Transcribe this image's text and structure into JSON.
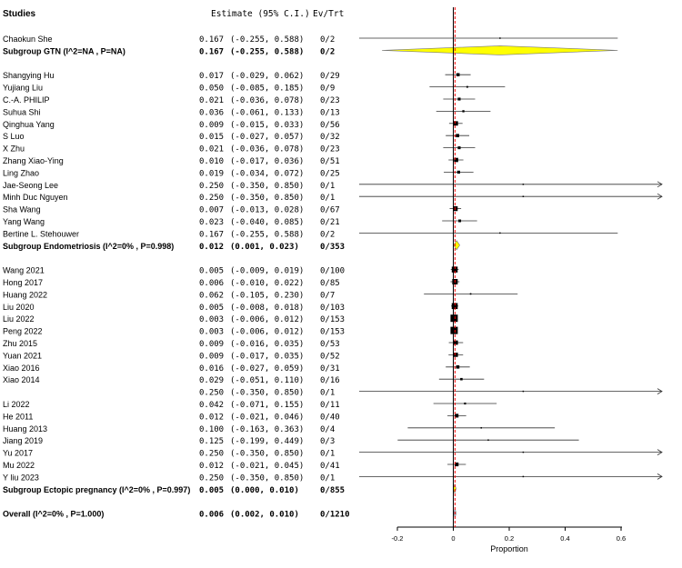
{
  "headers": {
    "studies": "Studies",
    "estimate": "Estimate (95% C.I.)",
    "events": "Ev/Trt"
  },
  "axis": {
    "xlabel": "Proportion",
    "ticks": [
      "-0.2",
      "0",
      "0.2",
      "0.4",
      "0.6"
    ]
  },
  "chart_data": {
    "type": "forest",
    "xlim": [
      -0.2,
      0.6
    ],
    "xlabel": "Proportion",
    "reference_line": 0.006,
    "colors": {
      "subgroup_diamond": "#ffff00",
      "overall_diamond": "#a8c0e0",
      "reference": "#ff0000"
    },
    "rows": [
      {
        "kind": "study",
        "name": "Chaokun She",
        "est": 0.167,
        "lo": -0.255,
        "hi": 0.588,
        "est_text": "0.167",
        "ci_text": "(-0.255, 0.588)",
        "ev": "0/2"
      },
      {
        "kind": "subgroup",
        "name": "Subgroup GTN (I^2=NA , P=NA)",
        "est": 0.167,
        "lo": -0.255,
        "hi": 0.588,
        "est_text": "0.167",
        "ci_text": "(-0.255, 0.588)",
        "ev": "0/2"
      },
      {
        "kind": "blank"
      },
      {
        "kind": "study",
        "name": "Shangying Hu",
        "est": 0.017,
        "lo": -0.029,
        "hi": 0.062,
        "est_text": "0.017",
        "ci_text": "(-0.029, 0.062)",
        "ev": "0/29"
      },
      {
        "kind": "study",
        "name": "Yujiang Liu",
        "est": 0.05,
        "lo": -0.085,
        "hi": 0.185,
        "est_text": "0.050",
        "ci_text": "(-0.085, 0.185)",
        "ev": "0/9"
      },
      {
        "kind": "study",
        "name": "C.-A. PHILIP",
        "est": 0.021,
        "lo": -0.036,
        "hi": 0.078,
        "est_text": "0.021",
        "ci_text": "(-0.036, 0.078)",
        "ev": "0/23"
      },
      {
        "kind": "study",
        "name": "Suhua Shi",
        "est": 0.036,
        "lo": -0.061,
        "hi": 0.133,
        "est_text": "0.036",
        "ci_text": "(-0.061, 0.133)",
        "ev": "0/13"
      },
      {
        "kind": "study",
        "name": "Qinghua Yang",
        "est": 0.009,
        "lo": -0.015,
        "hi": 0.033,
        "est_text": "0.009",
        "ci_text": "(-0.015, 0.033)",
        "ev": "0/56"
      },
      {
        "kind": "study",
        "name": "S Luo",
        "est": 0.015,
        "lo": -0.027,
        "hi": 0.057,
        "est_text": "0.015",
        "ci_text": "(-0.027, 0.057)",
        "ev": "0/32"
      },
      {
        "kind": "study",
        "name": "X Zhu",
        "est": 0.021,
        "lo": -0.036,
        "hi": 0.078,
        "est_text": "0.021",
        "ci_text": "(-0.036, 0.078)",
        "ev": "0/23"
      },
      {
        "kind": "study",
        "name": "Zhang Xiao-Ying",
        "est": 0.01,
        "lo": -0.017,
        "hi": 0.036,
        "est_text": "0.010",
        "ci_text": "(-0.017, 0.036)",
        "ev": "0/51"
      },
      {
        "kind": "study",
        "name": "Ling Zhao",
        "est": 0.019,
        "lo": -0.034,
        "hi": 0.072,
        "est_text": "0.019",
        "ci_text": "(-0.034, 0.072)",
        "ev": "0/25"
      },
      {
        "kind": "study",
        "name": "Jae-Seong Lee",
        "est": 0.25,
        "lo": -0.35,
        "hi": 0.85,
        "est_text": "0.250",
        "ci_text": "(-0.350, 0.850)",
        "ev": "0/1"
      },
      {
        "kind": "study",
        "name": "Minh Duc Nguyen",
        "est": 0.25,
        "lo": -0.35,
        "hi": 0.85,
        "est_text": "0.250",
        "ci_text": "(-0.350, 0.850)",
        "ev": "0/1"
      },
      {
        "kind": "study",
        "name": "Sha Wang",
        "est": 0.007,
        "lo": -0.013,
        "hi": 0.028,
        "est_text": "0.007",
        "ci_text": "(-0.013, 0.028)",
        "ev": "0/67"
      },
      {
        "kind": "study",
        "name": "Yang Wang",
        "est": 0.023,
        "lo": -0.04,
        "hi": 0.085,
        "est_text": "0.023",
        "ci_text": "(-0.040, 0.085)",
        "ev": "0/21"
      },
      {
        "kind": "study",
        "name": "Bertine L. Stehouwer",
        "est": 0.167,
        "lo": -0.255,
        "hi": 0.588,
        "est_text": "0.167",
        "ci_text": "(-0.255, 0.588)",
        "ev": "0/2"
      },
      {
        "kind": "subgroup",
        "name": "Subgroup Endometriosis (I^2=0% , P=0.998)",
        "est": 0.012,
        "lo": 0.001,
        "hi": 0.023,
        "est_text": "0.012",
        "ci_text": "(0.001, 0.023)",
        "ev": "0/353"
      },
      {
        "kind": "blank"
      },
      {
        "kind": "study",
        "name": "Wang 2021",
        "est": 0.005,
        "lo": -0.009,
        "hi": 0.019,
        "est_text": "0.005",
        "ci_text": "(-0.009, 0.019)",
        "ev": "0/100"
      },
      {
        "kind": "study",
        "name": "Hong 2017",
        "est": 0.006,
        "lo": -0.01,
        "hi": 0.022,
        "est_text": "0.006",
        "ci_text": "(-0.010, 0.022)",
        "ev": "0/85"
      },
      {
        "kind": "study",
        "name": "Huang 2022",
        "est": 0.062,
        "lo": -0.105,
        "hi": 0.23,
        "est_text": "0.062",
        "ci_text": "(-0.105, 0.230)",
        "ev": "0/7"
      },
      {
        "kind": "study",
        "name": "Liu 2020",
        "est": 0.005,
        "lo": -0.008,
        "hi": 0.018,
        "est_text": "0.005",
        "ci_text": "(-0.008, 0.018)",
        "ev": "0/103"
      },
      {
        "kind": "study",
        "name": "Liu 2022",
        "est": 0.003,
        "lo": -0.006,
        "hi": 0.012,
        "est_text": "0.003",
        "ci_text": "(-0.006, 0.012)",
        "ev": "0/153"
      },
      {
        "kind": "study",
        "name": "Peng 2022",
        "est": 0.003,
        "lo": -0.006,
        "hi": 0.012,
        "est_text": "0.003",
        "ci_text": "(-0.006, 0.012)",
        "ev": "0/153"
      },
      {
        "kind": "study",
        "name": "Zhu 2015",
        "est": 0.009,
        "lo": -0.016,
        "hi": 0.035,
        "est_text": "0.009",
        "ci_text": "(-0.016, 0.035)",
        "ev": "0/53"
      },
      {
        "kind": "study",
        "name": " Yuan 2021",
        "est": 0.009,
        "lo": -0.017,
        "hi": 0.035,
        "est_text": "0.009",
        "ci_text": "(-0.017, 0.035)",
        "ev": "0/52"
      },
      {
        "kind": "study",
        "name": "Xiao 2016",
        "est": 0.016,
        "lo": -0.027,
        "hi": 0.059,
        "est_text": "0.016",
        "ci_text": "(-0.027, 0.059)",
        "ev": "0/31"
      },
      {
        "kind": "study",
        "name": " Xiao 2014",
        "est": 0.029,
        "lo": -0.051,
        "hi": 0.11,
        "est_text": "0.029",
        "ci_text": "(-0.051, 0.110)",
        "ev": "0/16"
      },
      {
        "kind": "study",
        "name": "",
        "est": 0.25,
        "lo": -0.35,
        "hi": 0.85,
        "est_text": "0.250",
        "ci_text": "(-0.350, 0.850)",
        "ev": "0/1"
      },
      {
        "kind": "study",
        "name": "Li 2022",
        "est": 0.042,
        "lo": -0.071,
        "hi": 0.155,
        "est_text": "0.042",
        "ci_text": "(-0.071, 0.155)",
        "ev": "0/11"
      },
      {
        "kind": "study",
        "name": "He 2011",
        "est": 0.012,
        "lo": -0.021,
        "hi": 0.046,
        "est_text": "0.012",
        "ci_text": "(-0.021, 0.046)",
        "ev": "0/40"
      },
      {
        "kind": "study",
        "name": " Huang 2013",
        "est": 0.1,
        "lo": -0.163,
        "hi": 0.363,
        "est_text": "0.100",
        "ci_text": "(-0.163, 0.363)",
        "ev": "0/4"
      },
      {
        "kind": "study",
        "name": "Jiang 2019",
        "est": 0.125,
        "lo": -0.199,
        "hi": 0.449,
        "est_text": "0.125",
        "ci_text": "(-0.199, 0.449)",
        "ev": "0/3"
      },
      {
        "kind": "study",
        "name": "Yu 2017",
        "est": 0.25,
        "lo": -0.35,
        "hi": 0.85,
        "est_text": "0.250",
        "ci_text": "(-0.350, 0.850)",
        "ev": "0/1"
      },
      {
        "kind": "study",
        "name": "Mu 2022",
        "est": 0.012,
        "lo": -0.021,
        "hi": 0.045,
        "est_text": "0.012",
        "ci_text": "(-0.021, 0.045)",
        "ev": "0/41"
      },
      {
        "kind": "study",
        "name": "Y liu 2023",
        "est": 0.25,
        "lo": -0.35,
        "hi": 0.85,
        "est_text": "0.250",
        "ci_text": "(-0.350, 0.850)",
        "ev": "0/1"
      },
      {
        "kind": "subgroup",
        "name": "Subgroup Ectopic pregnancy (I^2=0% , P=0.997)",
        "est": 0.005,
        "lo": 0.0,
        "hi": 0.01,
        "est_text": "0.005",
        "ci_text": "(0.000, 0.010)",
        "ev": "0/855"
      },
      {
        "kind": "blank"
      },
      {
        "kind": "overall",
        "name": "Overall (I^2=0% , P=1.000)",
        "est": 0.006,
        "lo": 0.002,
        "hi": 0.01,
        "est_text": "0.006",
        "ci_text": "(0.002, 0.010)",
        "ev": "0/1210"
      }
    ]
  }
}
